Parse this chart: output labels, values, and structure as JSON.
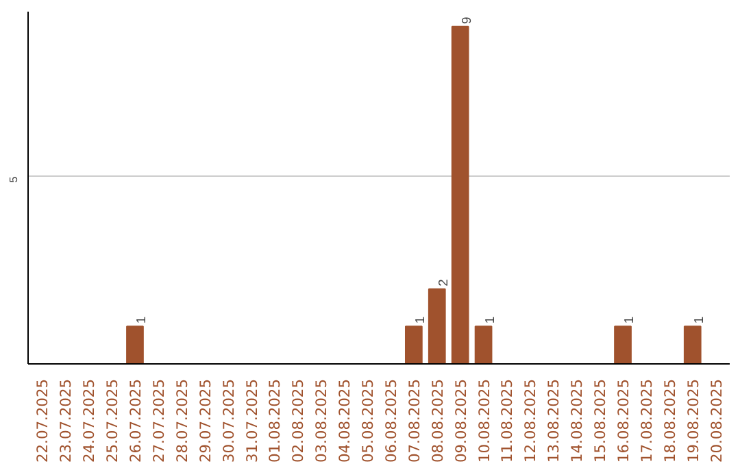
{
  "chart_data": {
    "type": "bar",
    "categories": [
      "22.07.2025",
      "23.07.2025",
      "24.07.2025",
      "25.07.2025",
      "26.07.2025",
      "27.07.2025",
      "28.07.2025",
      "29.07.2025",
      "30.07.2025",
      "31.07.2025",
      "01.08.2025",
      "02.08.2025",
      "03.08.2025",
      "04.08.2025",
      "05.08.2025",
      "06.08.2025",
      "07.08.2025",
      "08.08.2025",
      "09.08.2025",
      "10.08.2025",
      "11.08.2025",
      "12.08.2025",
      "13.08.2025",
      "14.08.2025",
      "15.08.2025",
      "16.08.2025",
      "17.08.2025",
      "18.08.2025",
      "19.08.2025",
      "20.08.2025"
    ],
    "values": [
      0,
      0,
      0,
      0,
      1,
      0,
      0,
      0,
      0,
      0,
      0,
      0,
      0,
      0,
      0,
      0,
      1,
      2,
      9,
      1,
      0,
      0,
      0,
      0,
      0,
      1,
      0,
      0,
      1,
      0
    ],
    "value_labels": [
      null,
      null,
      null,
      null,
      "1",
      null,
      null,
      null,
      null,
      null,
      null,
      null,
      null,
      null,
      null,
      null,
      "1",
      "2",
      "9",
      "1",
      null,
      null,
      null,
      null,
      null,
      "1",
      null,
      null,
      "1",
      null
    ],
    "color": "#a0522d",
    "ylim": [
      0,
      9.4
    ],
    "yticks": [
      5
    ],
    "grid": "y"
  }
}
